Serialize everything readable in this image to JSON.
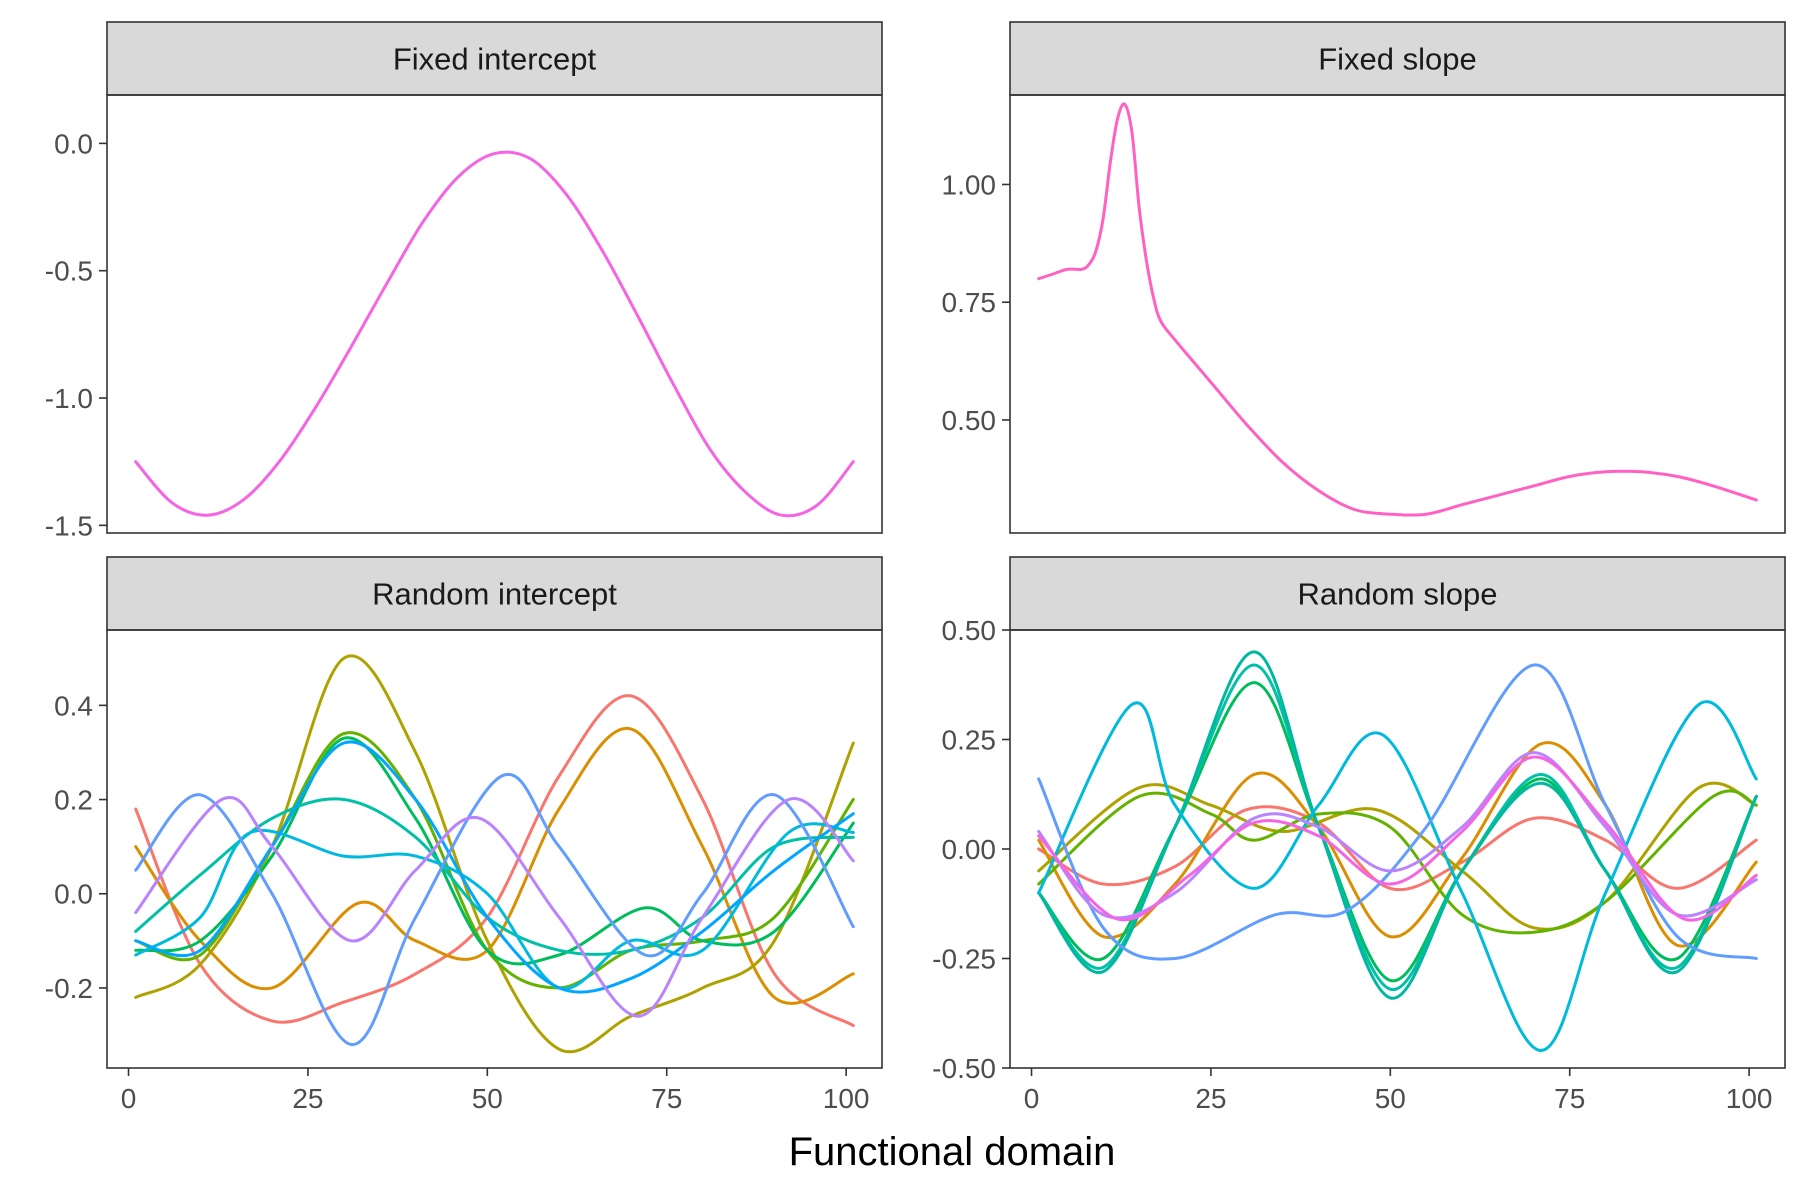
{
  "figure": {
    "xlabel": "Functional domain"
  },
  "chart_data": [
    {
      "type": "line",
      "title": "Fixed intercept",
      "xlim": [
        -3,
        105
      ],
      "ylim": [
        -1.53,
        0.19
      ],
      "x_ticks": [
        0,
        25,
        50,
        75,
        100
      ],
      "y_ticks": [
        0.0,
        -0.5,
        -1.0,
        -1.5
      ],
      "y_tick_labels": [
        "0.0",
        "-0.5",
        "-1.0",
        "-1.5"
      ],
      "series": [
        {
          "color": "#F564E3",
          "x": [
            1,
            6,
            11,
            16,
            21,
            26,
            31,
            36,
            41,
            46,
            51,
            56,
            61,
            66,
            71,
            76,
            81,
            86,
            91,
            96,
            101
          ],
          "y": [
            -1.25,
            -1.41,
            -1.46,
            -1.4,
            -1.25,
            -1.04,
            -0.8,
            -0.55,
            -0.31,
            -0.13,
            -0.04,
            -0.06,
            -0.2,
            -0.42,
            -0.68,
            -0.95,
            -1.2,
            -1.37,
            -1.46,
            -1.42,
            -1.25
          ]
        }
      ]
    },
    {
      "type": "line",
      "title": "Fixed slope",
      "xlim": [
        -3,
        105
      ],
      "ylim": [
        0.26,
        1.19
      ],
      "x_ticks": [
        0,
        25,
        50,
        75,
        100
      ],
      "y_ticks": [
        0.5,
        0.75,
        1.0
      ],
      "y_tick_labels": [
        "0.50",
        "0.75",
        "1.00"
      ],
      "series": [
        {
          "color": "#FF61C3",
          "x": [
            1,
            3,
            5,
            7,
            8,
            9,
            10,
            11,
            12,
            13,
            14,
            15,
            16,
            17,
            18,
            20,
            25,
            30,
            35,
            40,
            45,
            50,
            55,
            60,
            65,
            70,
            75,
            80,
            85,
            90,
            95,
            101
          ],
          "y": [
            0.8,
            0.81,
            0.82,
            0.82,
            0.83,
            0.86,
            0.93,
            1.05,
            1.14,
            1.17,
            1.11,
            0.95,
            0.84,
            0.76,
            0.71,
            0.67,
            0.58,
            0.49,
            0.41,
            0.35,
            0.31,
            0.3,
            0.3,
            0.32,
            0.34,
            0.36,
            0.38,
            0.39,
            0.39,
            0.38,
            0.36,
            0.33
          ]
        }
      ]
    },
    {
      "type": "line",
      "title": "Random intercept",
      "xlim": [
        -3,
        105
      ],
      "ylim": [
        -0.37,
        0.56
      ],
      "x_ticks": [
        0,
        25,
        50,
        75,
        100
      ],
      "y_ticks": [
        -0.2,
        0.0,
        0.2,
        0.4
      ],
      "y_tick_labels": [
        "-0.2",
        "0.0",
        "0.2",
        "0.4"
      ],
      "series": [
        {
          "color": "#F8766D",
          "x": [
            1,
            10,
            20,
            30,
            40,
            50,
            60,
            70,
            80,
            90,
            101
          ],
          "y": [
            0.18,
            -0.15,
            -0.27,
            -0.23,
            -0.17,
            -0.05,
            0.25,
            0.42,
            0.2,
            -0.17,
            -0.28
          ]
        },
        {
          "color": "#DB8E00",
          "x": [
            1,
            10,
            20,
            32,
            40,
            50,
            60,
            70,
            80,
            90,
            101
          ],
          "y": [
            0.1,
            -0.1,
            -0.2,
            -0.02,
            -0.1,
            -0.12,
            0.18,
            0.35,
            0.1,
            -0.22,
            -0.17
          ]
        },
        {
          "color": "#AEA200",
          "x": [
            1,
            10,
            20,
            30,
            40,
            50,
            60,
            70,
            80,
            90,
            101
          ],
          "y": [
            -0.22,
            -0.15,
            0.1,
            0.5,
            0.3,
            -0.1,
            -0.33,
            -0.26,
            -0.2,
            -0.1,
            0.32
          ]
        },
        {
          "color": "#64B200",
          "x": [
            1,
            10,
            20,
            30,
            40,
            50,
            60,
            70,
            80,
            90,
            101
          ],
          "y": [
            -0.1,
            -0.13,
            0.1,
            0.34,
            0.2,
            -0.12,
            -0.2,
            -0.12,
            -0.1,
            -0.05,
            0.2
          ]
        },
        {
          "color": "#00BD5C",
          "x": [
            1,
            10,
            20,
            30,
            40,
            50,
            60,
            72,
            80,
            90,
            101
          ],
          "y": [
            -0.12,
            -0.1,
            0.08,
            0.33,
            0.16,
            -0.12,
            -0.13,
            -0.03,
            -0.1,
            -0.08,
            0.15
          ]
        },
        {
          "color": "#00C1A7",
          "x": [
            1,
            10,
            20,
            30,
            40,
            50,
            60,
            70,
            80,
            90,
            101
          ],
          "y": [
            -0.08,
            0.04,
            0.16,
            0.2,
            0.12,
            -0.05,
            -0.12,
            -0.12,
            -0.05,
            0.1,
            0.12
          ]
        },
        {
          "color": "#00BADE",
          "x": [
            1,
            10,
            17,
            30,
            40,
            50,
            60,
            70,
            80,
            92,
            101
          ],
          "y": [
            -0.13,
            -0.05,
            0.13,
            0.08,
            0.08,
            0.0,
            -0.2,
            -0.1,
            -0.12,
            0.13,
            0.13
          ]
        },
        {
          "color": "#00A6FF",
          "x": [
            1,
            10,
            20,
            30,
            40,
            50,
            60,
            70,
            80,
            90,
            101
          ],
          "y": [
            -0.1,
            -0.12,
            0.1,
            0.32,
            0.2,
            -0.05,
            -0.2,
            -0.18,
            -0.08,
            0.05,
            0.17
          ]
        },
        {
          "color": "#619CFF",
          "x": [
            1,
            10,
            20,
            31,
            40,
            52,
            60,
            72,
            80,
            90,
            101
          ],
          "y": [
            0.05,
            0.21,
            0.0,
            -0.32,
            -0.05,
            0.25,
            0.1,
            -0.13,
            0.0,
            0.21,
            -0.07
          ]
        },
        {
          "color": "#B983FF",
          "x": [
            1,
            13,
            20,
            31,
            40,
            49,
            60,
            71,
            80,
            92,
            101
          ],
          "y": [
            -0.04,
            0.2,
            0.1,
            -0.1,
            0.05,
            0.16,
            -0.05,
            -0.26,
            -0.05,
            0.2,
            0.07
          ]
        }
      ]
    },
    {
      "type": "line",
      "title": "Random slope",
      "xlim": [
        -3,
        105
      ],
      "ylim": [
        -0.5,
        0.5
      ],
      "x_ticks": [
        0,
        25,
        50,
        75,
        100
      ],
      "y_ticks": [
        -0.5,
        -0.25,
        0.0,
        0.25,
        0.5
      ],
      "y_tick_labels": [
        "-0.50",
        "-0.25",
        "0.00",
        "0.25",
        "0.50"
      ],
      "series": [
        {
          "color": "#F8766D",
          "x": [
            1,
            10,
            20,
            30,
            40,
            50,
            60,
            70,
            80,
            90,
            101
          ],
          "y": [
            0.0,
            -0.08,
            -0.04,
            0.09,
            0.06,
            -0.09,
            -0.03,
            0.07,
            0.02,
            -0.09,
            0.02
          ]
        },
        {
          "color": "#DB8E00",
          "x": [
            1,
            10,
            20,
            31,
            40,
            50,
            60,
            71,
            80,
            90,
            101
          ],
          "y": [
            0.02,
            -0.2,
            -0.08,
            0.17,
            0.05,
            -0.2,
            -0.02,
            0.24,
            0.1,
            -0.22,
            -0.03
          ]
        },
        {
          "color": "#AEA200",
          "x": [
            1,
            15,
            25,
            35,
            48,
            60,
            70,
            80,
            93,
            101
          ],
          "y": [
            -0.05,
            0.14,
            0.1,
            0.04,
            0.09,
            -0.05,
            -0.18,
            -0.12,
            0.14,
            0.1
          ]
        },
        {
          "color": "#64B200",
          "x": [
            1,
            15,
            25,
            31,
            40,
            50,
            60,
            70,
            80,
            95,
            101
          ],
          "y": [
            -0.08,
            0.12,
            0.08,
            0.02,
            0.08,
            0.05,
            -0.15,
            -0.19,
            -0.12,
            0.12,
            0.1
          ]
        },
        {
          "color": "#00BD5C",
          "x": [
            1,
            10,
            20,
            31,
            40,
            50,
            60,
            71,
            80,
            90,
            101
          ],
          "y": [
            -0.1,
            -0.25,
            0.05,
            0.38,
            0.05,
            -0.3,
            -0.05,
            0.16,
            -0.05,
            -0.25,
            0.12
          ]
        },
        {
          "color": "#00C1A7",
          "x": [
            1,
            10,
            20,
            31,
            40,
            50,
            60,
            71,
            80,
            90,
            101
          ],
          "y": [
            -0.1,
            -0.27,
            0.05,
            0.42,
            0.05,
            -0.32,
            -0.05,
            0.17,
            -0.05,
            -0.27,
            0.12
          ]
        },
        {
          "color": "#00B8A0",
          "x": [
            1,
            10,
            20,
            31,
            40,
            50,
            60,
            71,
            80,
            90,
            101
          ],
          "y": [
            -0.1,
            -0.28,
            0.05,
            0.45,
            0.05,
            -0.34,
            -0.05,
            0.15,
            -0.05,
            -0.28,
            0.12
          ]
        },
        {
          "color": "#00BADE",
          "x": [
            1,
            14,
            20,
            31,
            40,
            49,
            60,
            71,
            80,
            93,
            101
          ],
          "y": [
            -0.1,
            0.33,
            0.1,
            -0.09,
            0.1,
            0.26,
            -0.1,
            -0.46,
            -0.1,
            0.33,
            0.16
          ]
        },
        {
          "color": "#619CFF",
          "x": [
            1,
            10,
            20,
            34,
            44,
            55,
            70,
            80,
            90,
            101
          ],
          "y": [
            0.16,
            -0.18,
            -0.25,
            -0.15,
            -0.14,
            0.05,
            0.42,
            0.1,
            -0.2,
            -0.25
          ]
        },
        {
          "color": "#B983FF",
          "x": [
            1,
            10,
            20,
            31,
            40,
            50,
            60,
            70,
            80,
            90,
            101
          ],
          "y": [
            0.04,
            -0.15,
            -0.1,
            0.07,
            0.05,
            -0.05,
            0.05,
            0.22,
            0.05,
            -0.15,
            -0.07
          ]
        },
        {
          "color": "#F564E3",
          "x": [
            1,
            12,
            22,
            31,
            40,
            50,
            60,
            70,
            80,
            91,
            101
          ],
          "y": [
            0.03,
            -0.16,
            -0.06,
            0.06,
            0.03,
            -0.08,
            0.04,
            0.21,
            0.06,
            -0.16,
            -0.06
          ]
        }
      ]
    }
  ]
}
